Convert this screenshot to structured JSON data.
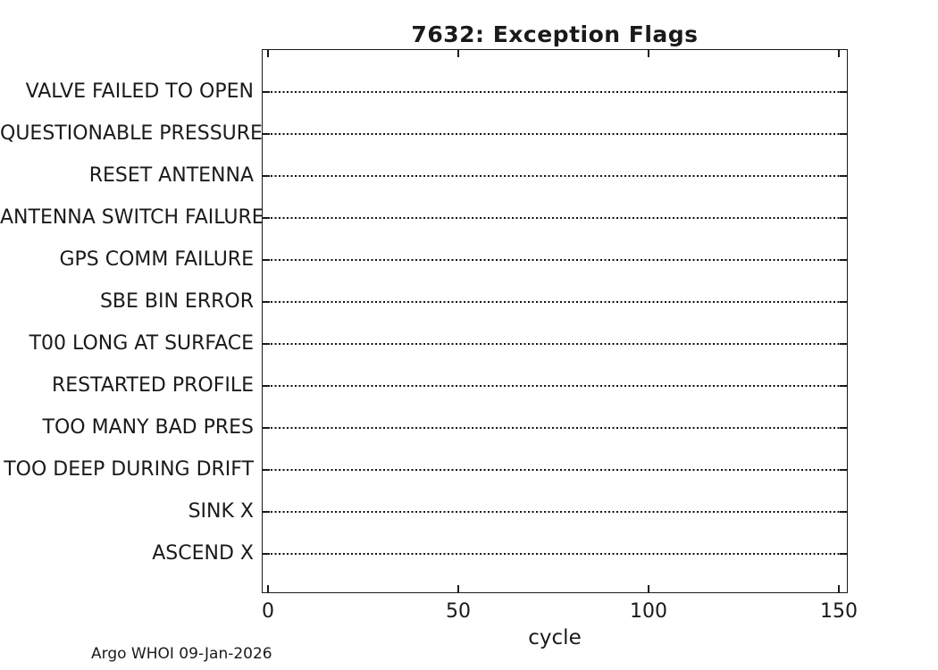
{
  "title": "7632: Exception Flags",
  "x_axis": {
    "label": "cycle"
  },
  "footer": "Argo WHOI 09-Jan-2026",
  "chart_data": {
    "type": "scatter",
    "title": "7632: Exception Flags",
    "xlabel": "cycle",
    "ylabel": "",
    "x_ticks": [
      0,
      50,
      100,
      150
    ],
    "xlim": [
      -2,
      152
    ],
    "categories": [
      "VALVE FAILED TO OPEN",
      "QUESTIONABLE PRESSURE",
      "RESET ANTENNA",
      "ANTENNA SWITCH FAILURE",
      "GPS COMM FAILURE",
      "SBE BIN ERROR",
      "T00 LONG AT SURFACE",
      "RESTARTED PROFILE",
      "TOO MANY BAD PRES",
      "TOO DEEP DURING DRIFT",
      "SINK X",
      "ASCEND X"
    ],
    "series": [],
    "points": "none - plot area is empty, no exception flag events are marked",
    "grid": "horizontal black dotted line across full plot width at every category row",
    "legend_position": "none",
    "colors": {
      "foreground": "#1a1a1a",
      "background": "#ffffff"
    }
  }
}
